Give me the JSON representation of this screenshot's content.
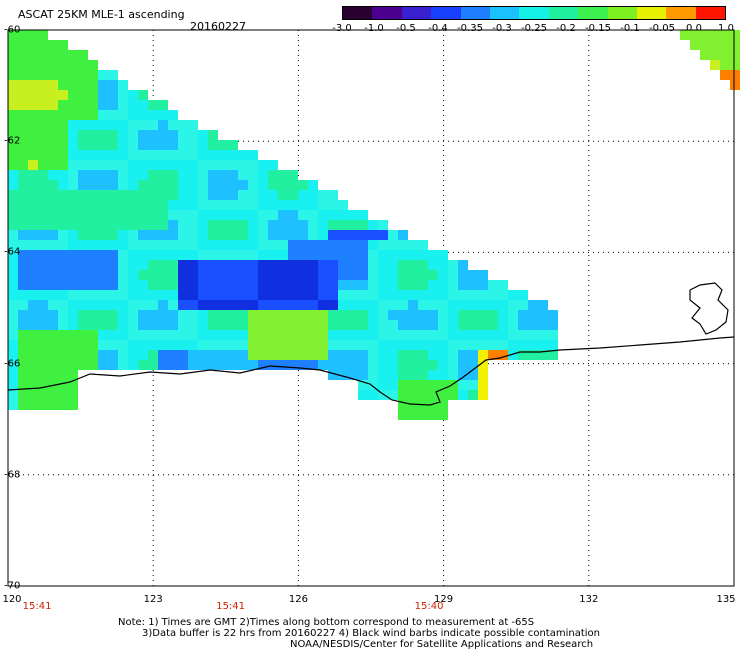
{
  "header": {
    "title": "ASCAT 25KM MLE-1 ascending",
    "date": "20160227"
  },
  "colorbar": {
    "labels": [
      "-3.0",
      "-1.0",
      "-0.5",
      "-0.4",
      "-0.35",
      "-0.3",
      "-0.25",
      "-0.2",
      "-0.15",
      "-0.1",
      "-0.05",
      "0.0",
      "1.0"
    ],
    "colors": [
      "#2a0030",
      "#4b0090",
      "#3a1fd0",
      "#1a40ff",
      "#1f80ff",
      "#19c2ff",
      "#14f0e6",
      "#20f0a0",
      "#3cf050",
      "#7cf020",
      "#e6f000",
      "#ff9a00",
      "#ff1400"
    ]
  },
  "axes": {
    "lat_labels": [
      "-60",
      "-62",
      "-64",
      "-66",
      "-68",
      "-70"
    ],
    "lon_labels": [
      "120",
      "123",
      "126",
      "129",
      "132",
      "135"
    ],
    "time_labels": [
      "15:41",
      "15:41",
      "15:40"
    ]
  },
  "notes": [
    "Note: 1) Times are GMT 2)Times along bottom correspond to measurement at -65S",
    "3)Data buffer is 22 hrs from 20160227 4) Black wind barbs indicate possible contamination",
    "NOAA/NESDIS/Center for Satellite Applications and Research"
  ],
  "map": {
    "lat_range": [
      -70,
      -60
    ],
    "lon_range": [
      120,
      135
    ],
    "grid": "dotted",
    "field_colors": {
      "cyan": "#19f0f0",
      "cyan_light": "#2af5e6",
      "teal_green": "#20f0a0",
      "green": "#40f040",
      "light_green": "#80f030",
      "yellow_green": "#c8f020",
      "yellow": "#f0f000",
      "blue_light": "#1ec0ff",
      "blue": "#1e80ff",
      "blue_dark": "#1a50ff",
      "navy": "#1030e0",
      "orange": "#ff8000",
      "orange_dark": "#ff6600"
    }
  }
}
